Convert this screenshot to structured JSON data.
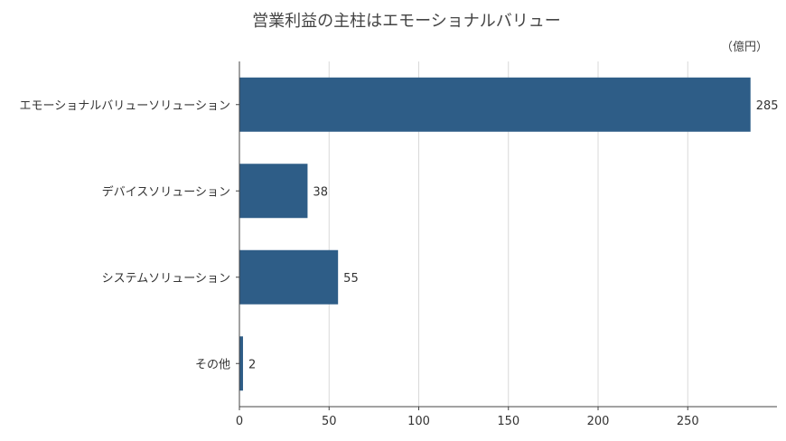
{
  "chart_data": {
    "type": "bar",
    "orientation": "horizontal",
    "title": "営業利益の主柱はエモーショナルバリュー",
    "unit_label": "（億円）",
    "categories": [
      "エモーショナルバリューソリューション",
      "デバイスソリューション",
      "システムソリューション",
      "その他"
    ],
    "values": [
      285,
      38,
      55,
      2
    ],
    "value_labels": [
      "285",
      "38",
      "55",
      "2"
    ],
    "xlim": [
      0,
      300
    ],
    "xticks": [
      0,
      50,
      100,
      150,
      200,
      250
    ],
    "xtick_labels": [
      "0",
      "50",
      "100",
      "150",
      "200",
      "250"
    ],
    "grid": "vertical",
    "legend": "none",
    "bar_color": "#2e5d87"
  }
}
